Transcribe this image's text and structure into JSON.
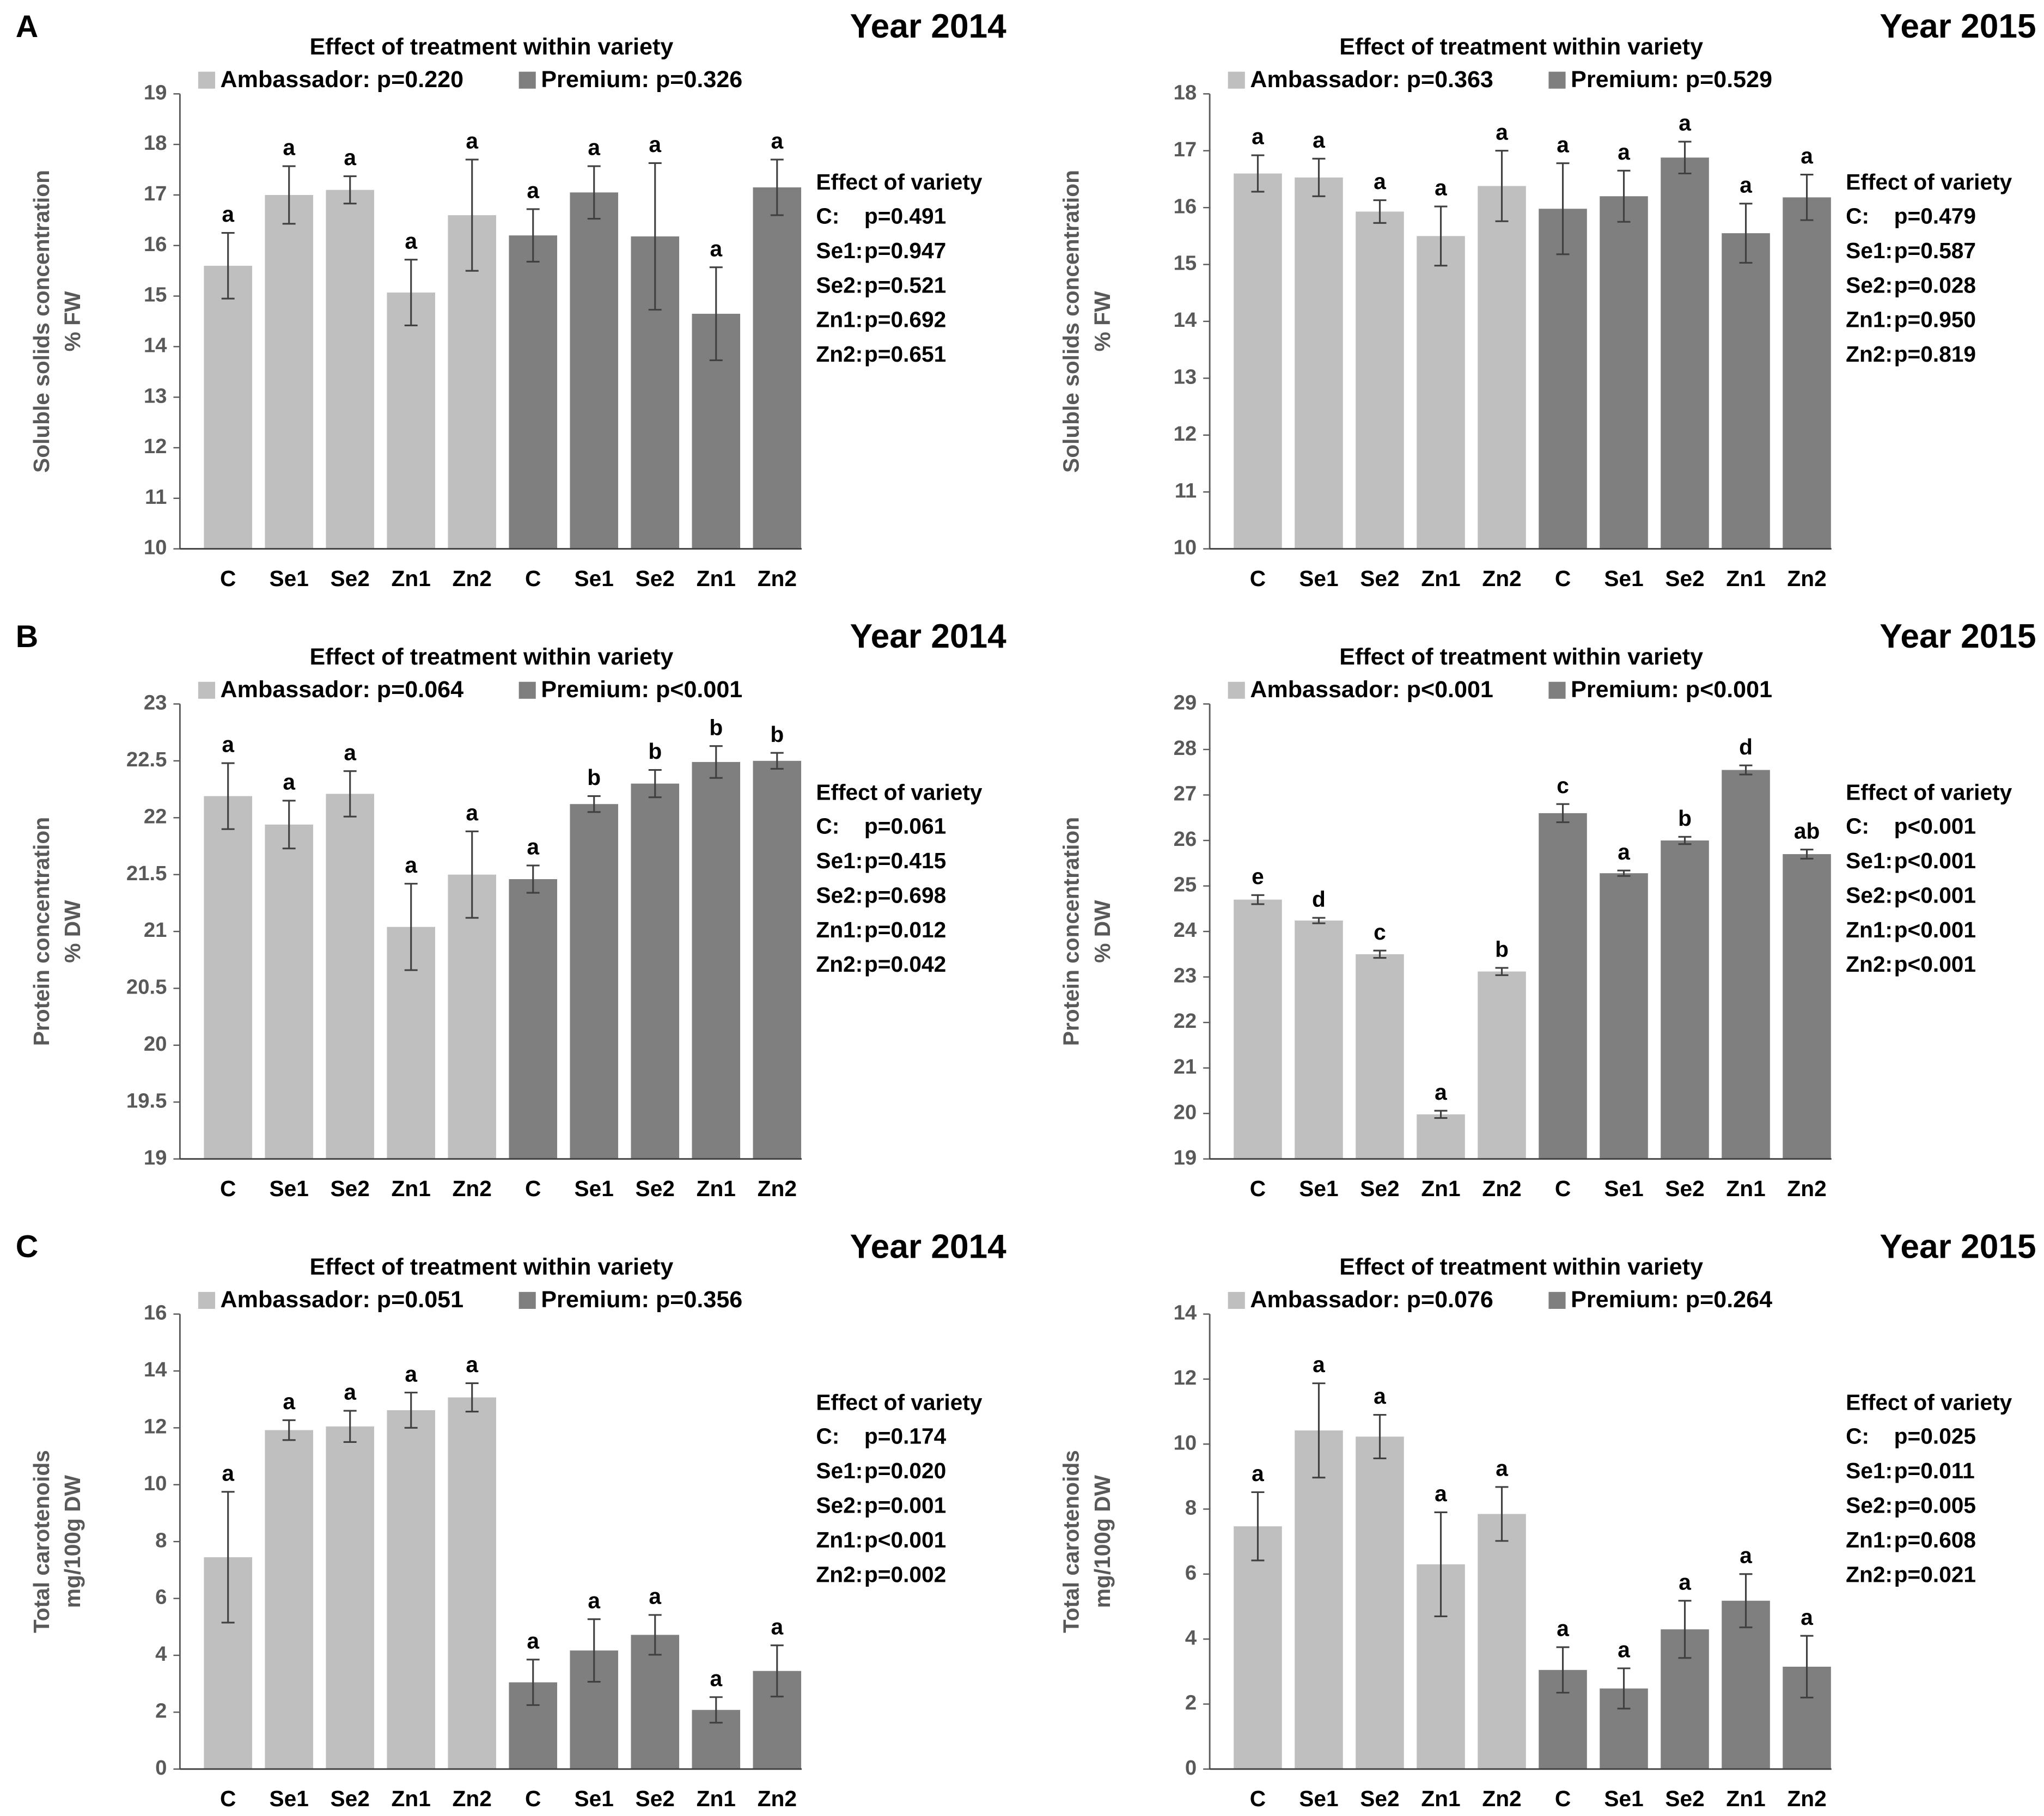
{
  "chart_data": [
    {
      "type": "bar",
      "panel": "A",
      "title": "Year 2014",
      "subtitle": "Effect of treatment within variety",
      "ylabel": [
        "Soluble solids concentration",
        "% FW"
      ],
      "categories": [
        "C",
        "Se1",
        "Se2",
        "Zn1",
        "Zn2",
        "C",
        "Se1",
        "Se2",
        "Zn1",
        "Zn2"
      ],
      "series": [
        {
          "name": "Ambassador: p=0.220",
          "color": "#bfbfbf",
          "values": [
            15.6,
            17.0,
            17.1,
            15.07,
            16.6,
            null,
            null,
            null,
            null,
            null
          ],
          "errors": [
            0.65,
            0.57,
            0.27,
            0.65,
            1.1,
            null,
            null,
            null,
            null,
            null
          ],
          "letters": [
            "a",
            "a",
            "a",
            "a",
            "a",
            null,
            null,
            null,
            null,
            null
          ]
        },
        {
          "name": "Premium: p=0.326",
          "color": "#7f7f7f",
          "values": [
            null,
            null,
            null,
            null,
            null,
            16.2,
            17.05,
            16.18,
            14.65,
            17.15
          ],
          "errors": [
            null,
            null,
            null,
            null,
            null,
            0.52,
            0.52,
            1.45,
            0.92,
            0.55
          ],
          "letters": [
            null,
            null,
            null,
            null,
            null,
            "a",
            "a",
            "a",
            "a",
            "a"
          ]
        }
      ],
      "ylim": [
        10,
        19
      ],
      "yticks": [
        10,
        11,
        12,
        13,
        14,
        15,
        16,
        17,
        18,
        19
      ],
      "variety_effect": {
        "title": "Effect of variety",
        "rows": [
          [
            "C:",
            "p=0.491"
          ],
          [
            "Se1:",
            "p=0.947"
          ],
          [
            "Se2:",
            "p=0.521"
          ],
          [
            "Zn1:",
            "p=0.692"
          ],
          [
            "Zn2:",
            "p=0.651"
          ]
        ]
      }
    },
    {
      "type": "bar",
      "title": "Year 2015",
      "subtitle": "Effect of treatment within variety",
      "ylabel": [
        "Soluble solids concentration",
        "% FW"
      ],
      "categories": [
        "C",
        "Se1",
        "Se2",
        "Zn1",
        "Zn2",
        "C",
        "Se1",
        "Se2",
        "Zn1",
        "Zn2"
      ],
      "series": [
        {
          "name": "Ambassador: p=0.363",
          "color": "#bfbfbf",
          "values": [
            16.6,
            16.53,
            15.93,
            15.5,
            16.38,
            null,
            null,
            null,
            null,
            null
          ],
          "errors": [
            0.32,
            0.33,
            0.2,
            0.52,
            0.62,
            null,
            null,
            null,
            null,
            null
          ],
          "letters": [
            "a",
            "a",
            "a",
            "a",
            "a",
            null,
            null,
            null,
            null,
            null
          ]
        },
        {
          "name": "Premium: p=0.529",
          "color": "#7f7f7f",
          "values": [
            null,
            null,
            null,
            null,
            null,
            15.98,
            16.2,
            16.88,
            15.55,
            16.18
          ],
          "errors": [
            null,
            null,
            null,
            null,
            null,
            0.8,
            0.45,
            0.28,
            0.52,
            0.4
          ],
          "letters": [
            null,
            null,
            null,
            null,
            null,
            "a",
            "a",
            "a",
            "a",
            "a"
          ]
        }
      ],
      "ylim": [
        10,
        18
      ],
      "yticks": [
        10,
        11,
        12,
        13,
        14,
        15,
        16,
        17,
        18
      ],
      "variety_effect": {
        "title": "Effect of variety",
        "rows": [
          [
            "C:",
            "p=0.479"
          ],
          [
            "Se1:",
            "p=0.587"
          ],
          [
            "Se2:",
            "p=0.028"
          ],
          [
            "Zn1:",
            "p=0.950"
          ],
          [
            "Zn2:",
            "p=0.819"
          ]
        ]
      }
    },
    {
      "type": "bar",
      "panel": "B",
      "title": "Year 2014",
      "subtitle": "Effect of treatment within variety",
      "ylabel": [
        "Protein concentration",
        "% DW"
      ],
      "categories": [
        "C",
        "Se1",
        "Se2",
        "Zn1",
        "Zn2",
        "C",
        "Se1",
        "Se2",
        "Zn1",
        "Zn2"
      ],
      "series": [
        {
          "name": "Ambassador: p=0.064",
          "color": "#bfbfbf",
          "values": [
            22.19,
            21.94,
            22.21,
            21.04,
            21.5,
            null,
            null,
            null,
            null,
            null
          ],
          "errors": [
            0.29,
            0.21,
            0.2,
            0.38,
            0.38,
            null,
            null,
            null,
            null,
            null
          ],
          "letters": [
            "a",
            "a",
            "a",
            "a",
            "a",
            null,
            null,
            null,
            null,
            null
          ]
        },
        {
          "name": "Premium: p<0.001",
          "color": "#7f7f7f",
          "values": [
            null,
            null,
            null,
            null,
            null,
            21.46,
            22.12,
            22.3,
            22.49,
            22.5
          ],
          "errors": [
            null,
            null,
            null,
            null,
            null,
            0.12,
            0.07,
            0.12,
            0.14,
            0.07
          ],
          "letters": [
            null,
            null,
            null,
            null,
            null,
            "a",
            "b",
            "b",
            "b",
            "b"
          ]
        }
      ],
      "ylim": [
        19,
        23
      ],
      "yticks": [
        19,
        19.5,
        20,
        20.5,
        21,
        21.5,
        22,
        22.5,
        23
      ],
      "variety_effect": {
        "title": "Effect of variety",
        "rows": [
          [
            "C:",
            "p=0.061"
          ],
          [
            "Se1:",
            "p=0.415"
          ],
          [
            "Se2:",
            "p=0.698"
          ],
          [
            "Zn1:",
            "p=0.012"
          ],
          [
            "Zn2:",
            "p=0.042"
          ]
        ]
      }
    },
    {
      "type": "bar",
      "title": "Year 2015",
      "subtitle": "Effect of treatment within variety",
      "ylabel": [
        "Protein concentration",
        "% DW"
      ],
      "categories": [
        "C",
        "Se1",
        "Se2",
        "Zn1",
        "Zn2",
        "C",
        "Se1",
        "Se2",
        "Zn1",
        "Zn2"
      ],
      "series": [
        {
          "name": "Ambassador: p<0.001",
          "color": "#bfbfbf",
          "values": [
            24.7,
            24.24,
            23.5,
            19.98,
            23.12,
            null,
            null,
            null,
            null,
            null
          ],
          "errors": [
            0.1,
            0.06,
            0.08,
            0.08,
            0.08,
            null,
            null,
            null,
            null,
            null
          ],
          "letters": [
            "e",
            "d",
            "c",
            "a",
            "b",
            null,
            null,
            null,
            null,
            null
          ]
        },
        {
          "name": "Premium: p<0.001",
          "color": "#7f7f7f",
          "values": [
            null,
            null,
            null,
            null,
            null,
            26.6,
            25.28,
            26.0,
            27.55,
            25.7
          ],
          "errors": [
            null,
            null,
            null,
            null,
            null,
            0.2,
            0.06,
            0.08,
            0.1,
            0.1
          ],
          "letters": [
            null,
            null,
            null,
            null,
            null,
            "c",
            "a",
            "b",
            "d",
            "ab"
          ]
        }
      ],
      "ylim": [
        19,
        29
      ],
      "yticks": [
        19,
        20,
        21,
        22,
        23,
        24,
        25,
        26,
        27,
        28,
        29
      ],
      "variety_effect": {
        "title": "Effect of variety",
        "rows": [
          [
            "C:",
            "p<0.001"
          ],
          [
            "Se1:",
            "p<0.001"
          ],
          [
            "Se2:",
            "p<0.001"
          ],
          [
            "Zn1:",
            "p<0.001"
          ],
          [
            "Zn2:",
            "p<0.001"
          ]
        ]
      }
    },
    {
      "type": "bar",
      "panel": "C",
      "title": "Year 2014",
      "subtitle": "Effect of treatment within variety",
      "ylabel": [
        "Total carotenoids",
        "mg/100g DW"
      ],
      "categories": [
        "C",
        "Se1",
        "Se2",
        "Zn1",
        "Zn2",
        "C",
        "Se1",
        "Se2",
        "Zn1",
        "Zn2"
      ],
      "series": [
        {
          "name": "Ambassador: p=0.051",
          "color": "#bfbfbf",
          "values": [
            7.45,
            11.92,
            12.05,
            12.62,
            13.07,
            null,
            null,
            null,
            null,
            null
          ],
          "errors": [
            2.3,
            0.35,
            0.55,
            0.62,
            0.5,
            null,
            null,
            null,
            null,
            null
          ],
          "letters": [
            "a",
            "a",
            "a",
            "a",
            "a",
            null,
            null,
            null,
            null,
            null
          ]
        },
        {
          "name": "Premium: p=0.356",
          "color": "#7f7f7f",
          "values": [
            null,
            null,
            null,
            null,
            null,
            3.05,
            4.17,
            4.72,
            2.08,
            3.45
          ],
          "errors": [
            null,
            null,
            null,
            null,
            null,
            0.8,
            1.1,
            0.7,
            0.45,
            0.9
          ],
          "letters": [
            null,
            null,
            null,
            null,
            null,
            "a",
            "a",
            "a",
            "a",
            "a"
          ]
        }
      ],
      "ylim": [
        0,
        16
      ],
      "yticks": [
        0,
        2,
        4,
        6,
        8,
        10,
        12,
        14,
        16
      ],
      "variety_effect": {
        "title": "Effect of variety",
        "rows": [
          [
            "C:",
            "p=0.174"
          ],
          [
            "Se1:",
            "p=0.020"
          ],
          [
            "Se2:",
            "p=0.001"
          ],
          [
            "Zn1:",
            "p<0.001"
          ],
          [
            "Zn2:",
            "p=0.002"
          ]
        ]
      }
    },
    {
      "type": "bar",
      "title": "Year 2015",
      "subtitle": "Effect of treatment within variety",
      "ylabel": [
        "Total carotenoids",
        "mg/100g DW"
      ],
      "categories": [
        "C",
        "Se1",
        "Se2",
        "Zn1",
        "Zn2",
        "C",
        "Se1",
        "Se2",
        "Zn1",
        "Zn2"
      ],
      "series": [
        {
          "name": "Ambassador: p=0.076",
          "color": "#bfbfbf",
          "values": [
            7.47,
            10.42,
            10.23,
            6.3,
            7.85,
            null,
            null,
            null,
            null,
            null
          ],
          "errors": [
            1.05,
            1.45,
            0.67,
            1.6,
            0.83,
            null,
            null,
            null,
            null,
            null
          ],
          "letters": [
            "a",
            "a",
            "a",
            "a",
            "a",
            null,
            null,
            null,
            null,
            null
          ]
        },
        {
          "name": "Premium: p=0.264",
          "color": "#7f7f7f",
          "values": [
            null,
            null,
            null,
            null,
            null,
            3.05,
            2.48,
            4.3,
            5.18,
            3.15
          ],
          "errors": [
            null,
            null,
            null,
            null,
            null,
            0.7,
            0.62,
            0.88,
            0.82,
            0.95
          ],
          "letters": [
            null,
            null,
            null,
            null,
            null,
            "a",
            "a",
            "a",
            "a",
            "a"
          ]
        }
      ],
      "ylim": [
        0,
        14
      ],
      "yticks": [
        0,
        2,
        4,
        6,
        8,
        10,
        12,
        14
      ],
      "variety_effect": {
        "title": "Effect of variety",
        "rows": [
          [
            "C:",
            "p=0.025"
          ],
          [
            "Se1:",
            "p=0.011"
          ],
          [
            "Se2:",
            "p=0.005"
          ],
          [
            "Zn1:",
            "p=0.608"
          ],
          [
            "Zn2:",
            "p=0.021"
          ]
        ]
      }
    }
  ]
}
